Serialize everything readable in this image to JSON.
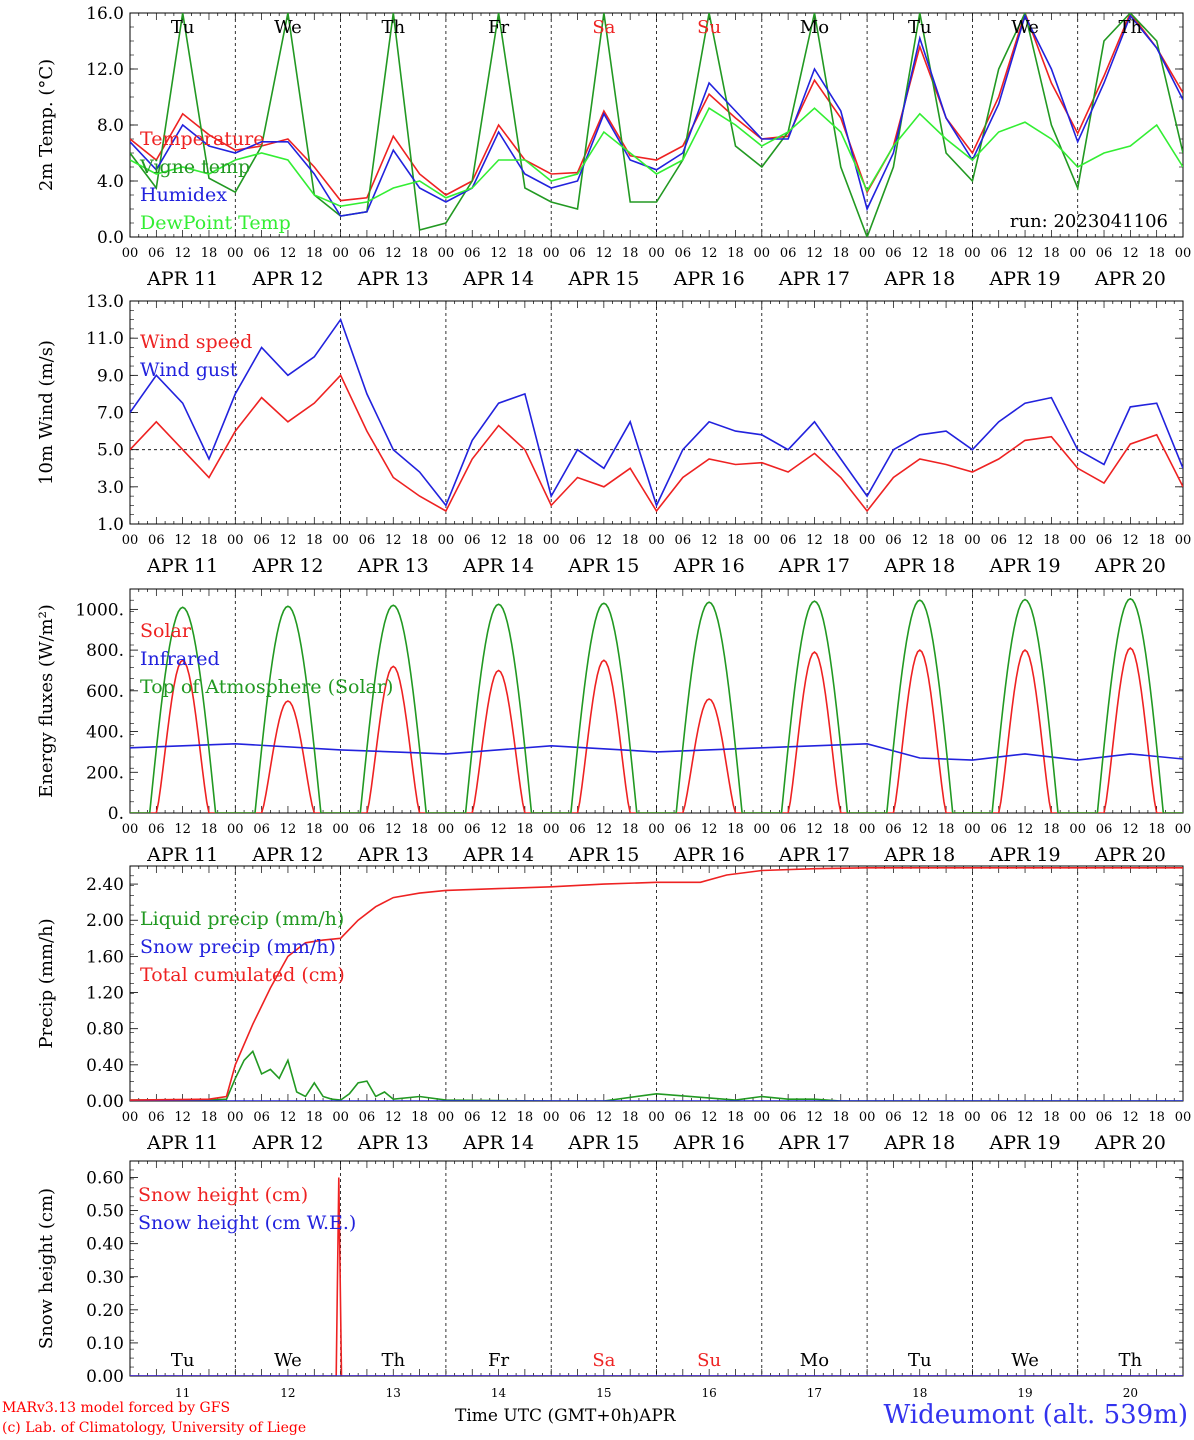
{
  "run_label": "run: 2023041106",
  "day_abbrev": [
    {
      "label": "Tu",
      "color": "#000000"
    },
    {
      "label": "We",
      "color": "#000000"
    },
    {
      "label": "Th",
      "color": "#000000"
    },
    {
      "label": "Fr",
      "color": "#000000"
    },
    {
      "label": "Sa",
      "color": "#ee2222"
    },
    {
      "label": "Su",
      "color": "#ee2222"
    },
    {
      "label": "Mo",
      "color": "#000000"
    },
    {
      "label": "Tu",
      "color": "#000000"
    },
    {
      "label": "We",
      "color": "#000000"
    },
    {
      "label": "Th",
      "color": "#000000"
    }
  ],
  "date_labels": [
    "APR 11",
    "APR 12",
    "APR 13",
    "APR 14",
    "APR 15",
    "APR 16",
    "APR 17",
    "APR 18",
    "APR 19",
    "APR 20"
  ],
  "day_numbers": [
    "11",
    "12",
    "13",
    "14",
    "15",
    "16",
    "17",
    "18",
    "19",
    "20"
  ],
  "hour_ticks": [
    "00",
    "06",
    "12",
    "18"
  ],
  "footer": {
    "credit_line1": "MARv3.13 model forced by GFS",
    "credit_line2": "(c) Lab. of Climatology, University of Liege",
    "xaxis_label": "Time UTC (GMT+0h)",
    "month": "APR",
    "station": "Wideumont (alt. 539m)"
  },
  "chart_data": [
    {
      "id": "temp",
      "type": "line",
      "ylabel": "2m Temp. (°C)",
      "ylim": [
        0,
        16
      ],
      "yticks": [
        "0.0",
        "4.0",
        "8.0",
        "12.0",
        "16.0"
      ],
      "x_unit": "hours since APR 11 00 UTC",
      "xlim": [
        0,
        240
      ],
      "series": [
        {
          "name": "Temperature",
          "color": "#ee2222",
          "x": [
            0,
            6,
            12,
            18,
            24,
            30,
            36,
            42,
            48,
            54,
            60,
            66,
            72,
            78,
            84,
            90,
            96,
            102,
            108,
            114,
            120,
            126,
            132,
            138,
            144,
            150,
            156,
            162,
            168,
            174,
            180,
            186,
            192,
            198,
            204,
            210,
            216,
            222,
            228,
            234,
            240
          ],
          "y": [
            7.0,
            5.5,
            8.8,
            7.3,
            6.2,
            6.5,
            7.0,
            5.0,
            2.6,
            2.8,
            7.2,
            4.5,
            3.0,
            4.0,
            8.0,
            5.5,
            4.5,
            4.6,
            9.0,
            5.8,
            5.5,
            6.5,
            10.2,
            8.5,
            7.0,
            7.2,
            11.2,
            8.5,
            3.2,
            6.5,
            13.6,
            8.5,
            6.0,
            10.0,
            16.0,
            11.0,
            7.4,
            11.5,
            16.0,
            13.5,
            10.3
          ]
        },
        {
          "name": "Vigne temp",
          "color": "#229922",
          "x": [
            0,
            6,
            12,
            18,
            24,
            30,
            36,
            42,
            48,
            54,
            60,
            66,
            72,
            78,
            84,
            90,
            96,
            102,
            108,
            114,
            120,
            126,
            132,
            138,
            144,
            150,
            156,
            162,
            168,
            174,
            180,
            186,
            192,
            198,
            204,
            210,
            216,
            222,
            228,
            234,
            240
          ],
          "y": [
            6.0,
            3.5,
            16.0,
            4.2,
            3.2,
            6.5,
            16.0,
            3.0,
            1.5,
            1.8,
            16.0,
            0.5,
            1.0,
            4.0,
            16.0,
            3.5,
            2.5,
            2.0,
            16.0,
            2.5,
            2.5,
            5.5,
            16.0,
            6.5,
            5.0,
            7.5,
            16.0,
            5.0,
            0.0,
            5.0,
            16.0,
            6.0,
            4.0,
            12.0,
            16.0,
            8.0,
            3.5,
            14.0,
            16.0,
            14.0,
            6.0
          ]
        },
        {
          "name": "Humidex",
          "color": "#2222dd",
          "x": [
            0,
            6,
            12,
            18,
            24,
            30,
            36,
            42,
            48,
            54,
            60,
            66,
            72,
            78,
            84,
            90,
            96,
            102,
            108,
            114,
            120,
            126,
            132,
            138,
            144,
            150,
            156,
            162,
            168,
            174,
            180,
            186,
            192,
            198,
            204,
            210,
            216,
            222,
            228,
            234,
            240
          ],
          "y": [
            6.8,
            4.8,
            8.0,
            6.5,
            6.0,
            6.8,
            6.8,
            4.5,
            1.5,
            1.8,
            6.2,
            3.5,
            2.5,
            3.5,
            7.5,
            4.5,
            3.5,
            4.0,
            8.8,
            5.5,
            4.8,
            6.0,
            11.0,
            9.0,
            7.0,
            7.0,
            12.0,
            9.0,
            2.0,
            6.0,
            14.2,
            8.5,
            5.5,
            9.5,
            15.8,
            12.0,
            6.8,
            11.0,
            15.8,
            13.5,
            9.8
          ]
        },
        {
          "name": "DewPoint Temp",
          "color": "#33ee33",
          "x": [
            0,
            6,
            12,
            18,
            24,
            30,
            36,
            42,
            48,
            54,
            60,
            66,
            72,
            78,
            84,
            90,
            96,
            102,
            108,
            114,
            120,
            126,
            132,
            138,
            144,
            150,
            156,
            162,
            168,
            174,
            180,
            186,
            192,
            198,
            204,
            210,
            216,
            222,
            228,
            234,
            240
          ],
          "y": [
            5.5,
            4.5,
            5.0,
            4.5,
            5.5,
            6.0,
            5.5,
            3.0,
            2.2,
            2.5,
            3.5,
            4.0,
            2.8,
            3.5,
            5.5,
            5.5,
            4.0,
            4.5,
            7.5,
            6.0,
            4.5,
            5.5,
            9.2,
            8.0,
            6.5,
            7.5,
            9.2,
            7.5,
            3.3,
            6.5,
            8.8,
            7.0,
            5.5,
            7.5,
            8.2,
            7.0,
            5.0,
            6.0,
            6.5,
            8.0,
            5.0
          ]
        }
      ]
    },
    {
      "id": "wind",
      "type": "line",
      "ylabel": "10m Wind (m/s)",
      "ylim": [
        1,
        13
      ],
      "yticks": [
        "1.0",
        "3.0",
        "5.0",
        "7.0",
        "9.0",
        "11.0",
        "13.0"
      ],
      "reference_line": 5,
      "x_unit": "hours since APR 11 00 UTC",
      "xlim": [
        0,
        240
      ],
      "series": [
        {
          "name": "Wind speed",
          "color": "#ee2222",
          "x": [
            0,
            6,
            12,
            18,
            24,
            30,
            36,
            42,
            48,
            54,
            60,
            66,
            72,
            78,
            84,
            90,
            96,
            102,
            108,
            114,
            120,
            126,
            132,
            138,
            144,
            150,
            156,
            162,
            168,
            174,
            180,
            186,
            192,
            198,
            204,
            210,
            216,
            222,
            228,
            234,
            240
          ],
          "y": [
            5.0,
            6.5,
            5.0,
            3.5,
            6.0,
            7.8,
            6.5,
            7.5,
            9.0,
            6.0,
            3.5,
            2.5,
            1.7,
            4.5,
            6.3,
            5.0,
            2.0,
            3.5,
            3.0,
            4.0,
            1.7,
            3.5,
            4.5,
            4.2,
            4.3,
            3.8,
            4.8,
            3.5,
            1.7,
            3.5,
            4.5,
            4.2,
            3.8,
            4.5,
            5.5,
            5.7,
            4.0,
            3.2,
            5.3,
            5.8,
            3.0
          ]
        },
        {
          "name": "Wind gust",
          "color": "#2222dd",
          "x": [
            0,
            6,
            12,
            18,
            24,
            30,
            36,
            42,
            48,
            54,
            60,
            66,
            72,
            78,
            84,
            90,
            96,
            102,
            108,
            114,
            120,
            126,
            132,
            138,
            144,
            150,
            156,
            162,
            168,
            174,
            180,
            186,
            192,
            198,
            204,
            210,
            216,
            222,
            228,
            234,
            240
          ],
          "y": [
            7.0,
            9.0,
            7.5,
            4.5,
            8.0,
            10.5,
            9.0,
            10.0,
            12.0,
            8.0,
            5.0,
            3.8,
            2.0,
            5.5,
            7.5,
            8.0,
            2.5,
            5.0,
            4.0,
            6.5,
            2.0,
            5.0,
            6.5,
            6.0,
            5.8,
            5.0,
            6.5,
            4.5,
            2.5,
            5.0,
            5.8,
            6.0,
            5.0,
            6.5,
            7.5,
            7.8,
            5.0,
            4.2,
            7.3,
            7.5,
            4.0
          ]
        }
      ]
    },
    {
      "id": "energy",
      "type": "line",
      "ylabel": "Energy fluxes (W/m²)",
      "ylim": [
        0,
        1100
      ],
      "yticks": [
        "0.",
        "200.",
        "400.",
        "600.",
        "800.",
        "1000."
      ],
      "x_unit": "hours since APR 11 00 UTC",
      "xlim": [
        0,
        240
      ],
      "series": [
        {
          "name": "Solar",
          "color": "#ee2222",
          "daily_peak": [
            750,
            550,
            720,
            700,
            750,
            560,
            790,
            800,
            800,
            810
          ]
        },
        {
          "name": "Infrared",
          "color": "#2222dd",
          "x": [
            0,
            24,
            48,
            72,
            96,
            120,
            144,
            168,
            180,
            192,
            204,
            216,
            228,
            240
          ],
          "y": [
            320,
            340,
            310,
            290,
            330,
            300,
            320,
            340,
            270,
            260,
            290,
            260,
            290,
            265
          ]
        },
        {
          "name": "Top of Atmosphere (Solar)",
          "color": "#229922",
          "daily_peak": [
            1010,
            1015,
            1020,
            1025,
            1030,
            1035,
            1040,
            1045,
            1048,
            1052
          ]
        }
      ]
    },
    {
      "id": "precip",
      "type": "line",
      "ylabel": "Precip (mm/h)",
      "ylim": [
        0,
        2.6
      ],
      "yticks": [
        "0.00",
        "0.40",
        "0.80",
        "1.20",
        "1.60",
        "2.00",
        "2.40"
      ],
      "x_unit": "hours since APR 11 00 UTC",
      "xlim": [
        0,
        240
      ],
      "series": [
        {
          "name": "Liquid precip (mm/h)",
          "color": "#229922",
          "x": [
            0,
            18,
            22,
            24,
            26,
            28,
            30,
            32,
            34,
            36,
            38,
            40,
            42,
            44,
            46,
            48,
            50,
            52,
            54,
            56,
            58,
            60,
            66,
            72,
            96,
            108,
            120,
            138,
            144,
            150,
            156,
            162,
            168,
            240
          ],
          "y": [
            0.01,
            0.01,
            0.02,
            0.25,
            0.45,
            0.55,
            0.3,
            0.35,
            0.25,
            0.45,
            0.1,
            0.05,
            0.2,
            0.05,
            0.02,
            0.01,
            0.08,
            0.2,
            0.22,
            0.05,
            0.1,
            0.02,
            0.05,
            0.01,
            0.0,
            0.0,
            0.08,
            0.01,
            0.05,
            0.02,
            0.02,
            0.0,
            0.0,
            0.0
          ]
        },
        {
          "name": "Snow precip (mm/h)",
          "color": "#2222dd",
          "x": [
            0,
            240
          ],
          "y": [
            0.0,
            0.0
          ]
        },
        {
          "name": "Total cumulated (cm)",
          "color": "#ee2222",
          "x": [
            0,
            18,
            22,
            24,
            28,
            32,
            36,
            40,
            44,
            48,
            52,
            56,
            60,
            66,
            72,
            84,
            96,
            108,
            120,
            130,
            136,
            144,
            156,
            168,
            240
          ],
          "y": [
            0.01,
            0.02,
            0.05,
            0.4,
            0.85,
            1.25,
            1.6,
            1.75,
            1.78,
            1.8,
            2.0,
            2.15,
            2.25,
            2.3,
            2.33,
            2.35,
            2.37,
            2.4,
            2.42,
            2.42,
            2.5,
            2.55,
            2.57,
            2.58,
            2.58
          ]
        }
      ]
    },
    {
      "id": "snow",
      "type": "line",
      "ylabel": "Snow height (cm)",
      "ylim": [
        0,
        0.65
      ],
      "yticks": [
        "0.00",
        "0.10",
        "0.20",
        "0.30",
        "0.40",
        "0.50",
        "0.60"
      ],
      "x_unit": "hours since APR 11 00 UTC",
      "xlim": [
        0,
        240
      ],
      "series": [
        {
          "name": "Snow height (cm)",
          "color": "#ee2222",
          "x": [
            0,
            47,
            47.6,
            48.2,
            49,
            240
          ],
          "y": [
            0,
            0,
            0.6,
            0.0,
            0,
            0
          ]
        },
        {
          "name": "Snow height (cm W.E.)",
          "color": "#2222dd",
          "x": [
            0,
            240
          ],
          "y": [
            0,
            0
          ]
        }
      ]
    }
  ]
}
